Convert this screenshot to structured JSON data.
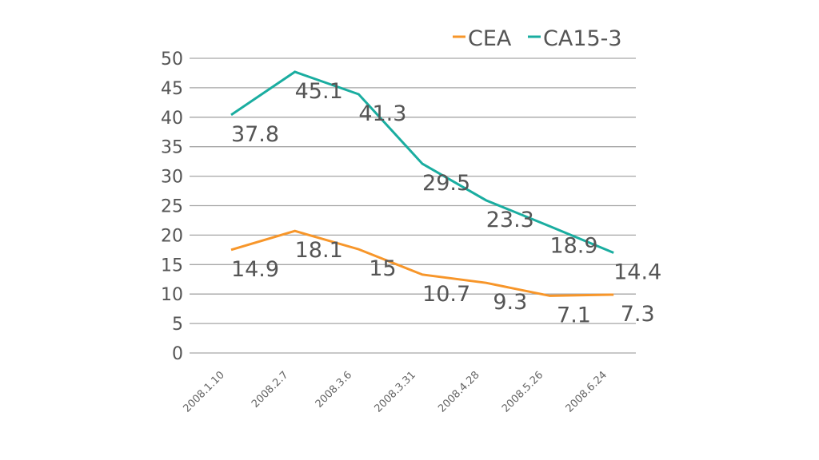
{
  "chart_data": {
    "type": "line",
    "title": "",
    "xlabel": "",
    "ylabel": "",
    "ylim": [
      0,
      50
    ],
    "yticks": [
      0,
      5,
      10,
      15,
      20,
      25,
      30,
      35,
      40,
      45,
      50
    ],
    "grid": true,
    "legend": "top-right",
    "categories": [
      "2008.1.10",
      "2008.2.7",
      "2008.3.6",
      "2008.3.31",
      "2008.4.28",
      "2008.5.26",
      "2008.6.24"
    ],
    "series": [
      {
        "name": "CEA",
        "color": "#F7962A",
        "values": [
          14.9,
          18.1,
          15,
          10.7,
          9.3,
          7.1,
          7.3
        ]
      },
      {
        "name": "CA15-3",
        "color": "#1AADA0",
        "values": [
          37.8,
          45.1,
          41.3,
          29.5,
          23.3,
          18.9,
          14.4
        ]
      }
    ]
  }
}
